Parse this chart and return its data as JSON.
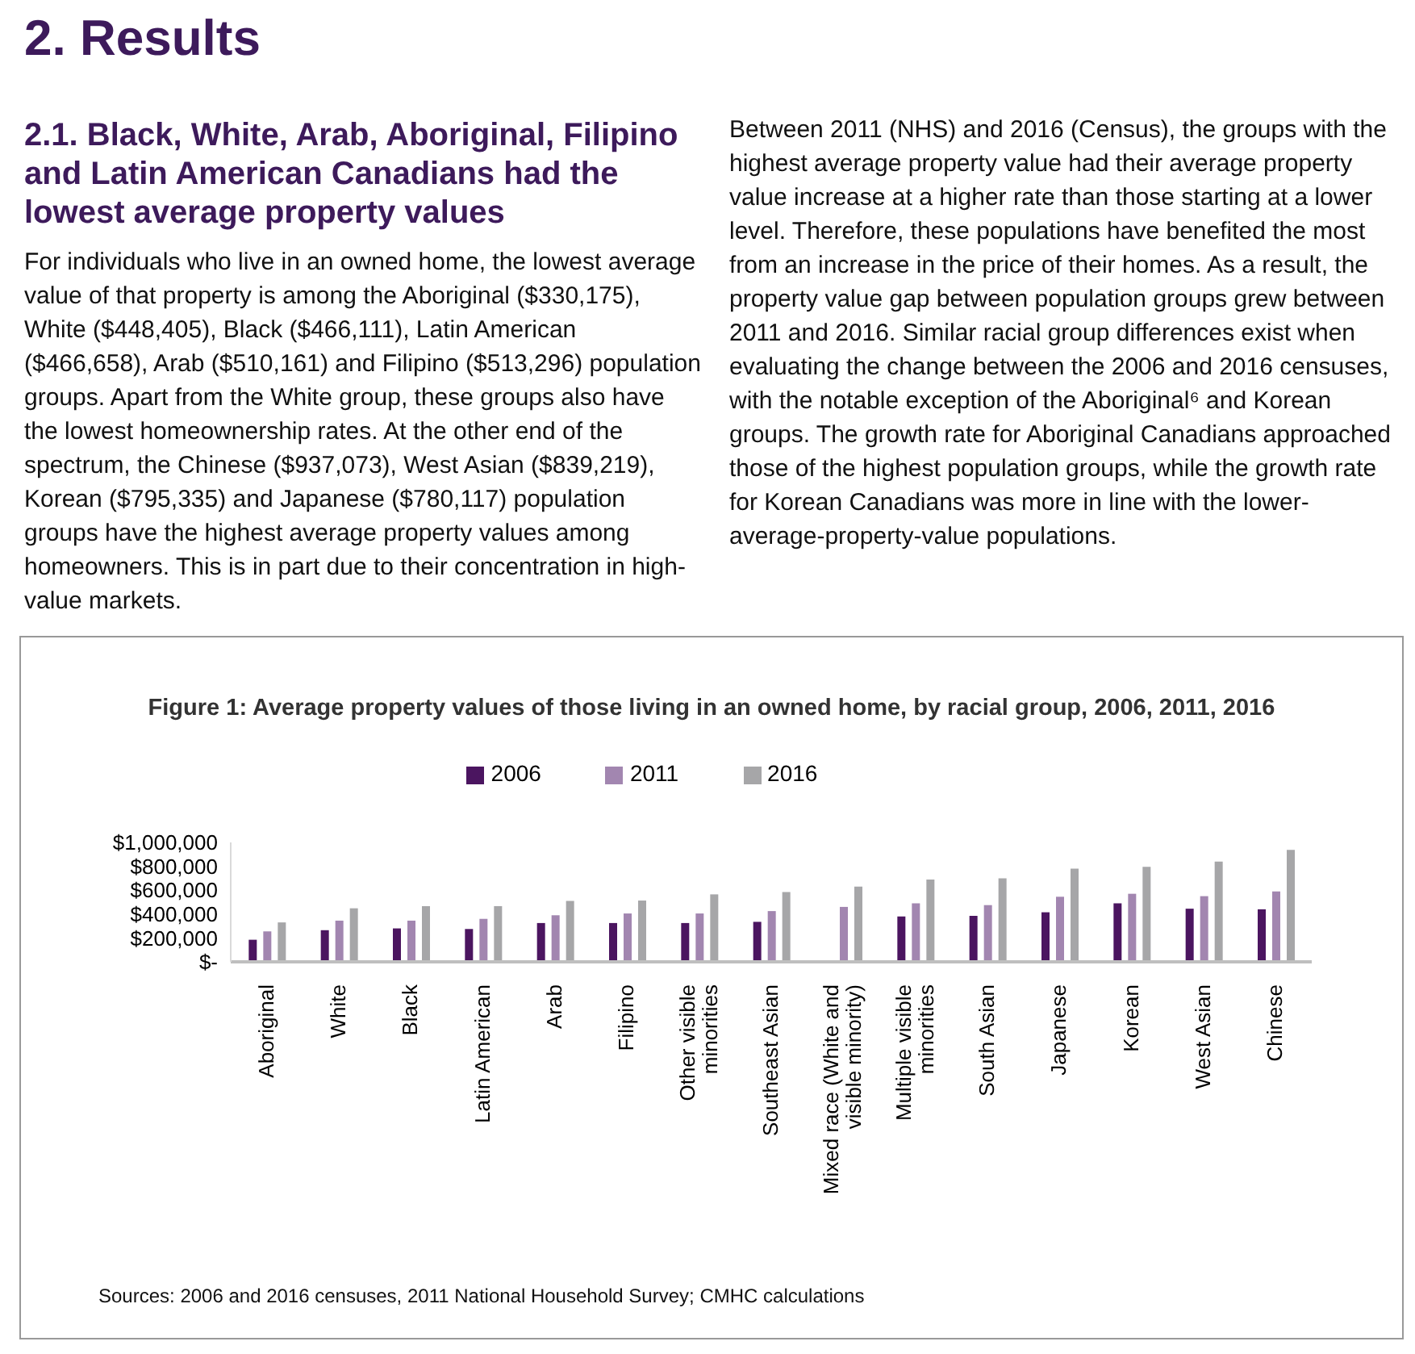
{
  "chart_data": {
    "type": "bar",
    "title": "Figure 1: Average property values of those living in an owned home, by racial group, 2006, 2011, 2016",
    "categories": [
      "Aboriginal",
      "White",
      "Black",
      "Latin American",
      "Arab",
      "Filipino",
      "Other visible minorities",
      "Southeast Asian",
      "Mixed race (White and visible minority)",
      "Multiple visible minorities",
      "South Asian",
      "Japanese",
      "Korean",
      "West Asian",
      "Chinese"
    ],
    "series": [
      {
        "name": "2006",
        "color": "#4b1560",
        "values": [
          185000,
          265000,
          280000,
          275000,
          325000,
          325000,
          325000,
          335000,
          null,
          380000,
          385000,
          415000,
          490000,
          445000,
          440000
        ]
      },
      {
        "name": "2011",
        "color": "#a286b0",
        "values": [
          255000,
          345000,
          345000,
          360000,
          390000,
          405000,
          405000,
          425000,
          460000,
          490000,
          475000,
          545000,
          570000,
          550000,
          590000
        ]
      },
      {
        "name": "2016",
        "color": "#a6a6a8",
        "values": [
          330175,
          448405,
          466111,
          466658,
          510161,
          513296,
          565000,
          585000,
          630000,
          690000,
          700000,
          780117,
          795335,
          839219,
          937073
        ]
      }
    ],
    "ylim": [
      0,
      1000000
    ],
    "yticks": [
      {
        "value": 0,
        "label": "$-"
      },
      {
        "value": 200000,
        "label": "$200,000"
      },
      {
        "value": 400000,
        "label": "$400,000"
      },
      {
        "value": 600000,
        "label": "$600,000"
      },
      {
        "value": 800000,
        "label": "$800,000"
      },
      {
        "value": 1000000,
        "label": "$1,000,000"
      }
    ],
    "grid": false,
    "legend": "top",
    "annotations": [
      "2. Results",
      "2.1. Black, White, Arab, Aboriginal, Filipino and Latin American Canadians had the lowest average property values",
      "For individuals who live in an owned home, the lowest average value of that property is among the Aboriginal ($330,175), White ($448,405), Black ($466,111), Latin American ($466,658), Arab ($510,161) and Filipino ($513,296) population groups. Apart from the White group, these groups also have the lowest homeownership rates. At the other end of the spectrum, the Chinese ($937,073), West Asian ($839,219), Korean ($795,335) and Japanese ($780,117) population groups have the highest average property values among homeowners. This is in part due to their concentration in high-value markets.",
      "Between 2011 (NHS) and 2016 (Census), the groups with the highest average property value had their average property value increase at a higher rate than those starting at a lower level. Therefore, these populations have benefited the most from an increase in the price of their homes. As a result, the property value gap between population groups grew between 2011 and 2016. Similar racial group differences exist when evaluating the change between the 2006 and 2016 censuses, with the notable exception of the Aboriginal⁶ and Korean groups. The growth rate for Aboriginal Canadians approached those of the highest population groups, while the growth rate for Korean Canadians was more in line with the lower-average-property-value populations.",
      "Sources: 2006 and 2016 censuses, 2011 National Household Survey; CMHC calculations"
    ]
  }
}
